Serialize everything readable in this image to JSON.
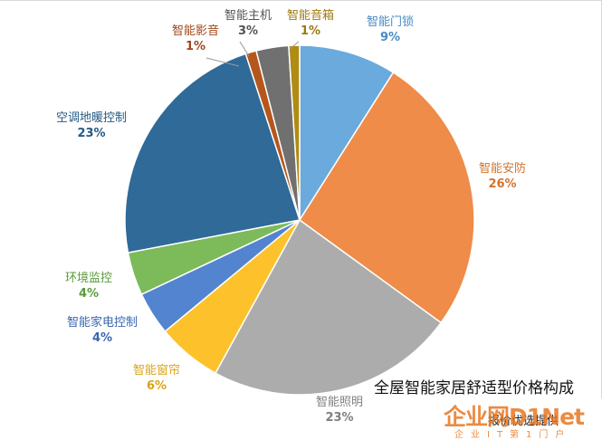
{
  "chart_data": {
    "type": "pie",
    "title": "全屋智能家居舒适型价格构成",
    "slices": [
      {
        "name": "智能门锁",
        "value": 9,
        "label": "9%",
        "color": "#6aaadc"
      },
      {
        "name": "智能安防",
        "value": 26,
        "label": "26%",
        "color": "#ef8c49"
      },
      {
        "name": "智能照明",
        "value": 23,
        "label": "23%",
        "color": "#acacac"
      },
      {
        "name": "智能窗帘",
        "value": 6,
        "label": "6%",
        "color": "#fdc22b"
      },
      {
        "name": "智能家电控制",
        "value": 4,
        "label": "4%",
        "color": "#5384cf"
      },
      {
        "name": "环境监控",
        "value": 4,
        "label": "4%",
        "color": "#7cba5a"
      },
      {
        "name": "空调地暖控制",
        "value": 23,
        "label": "23%",
        "color": "#2f6a98"
      },
      {
        "name": "智能影音",
        "value": 1,
        "label": "1%",
        "color": "#b5561c"
      },
      {
        "name": "智能主机",
        "value": 3,
        "label": "3%",
        "color": "#707070"
      },
      {
        "name": "智能音箱",
        "value": 1,
        "label": "1%",
        "color": "#b08c13"
      }
    ],
    "label_colors": [
      "#4a8ac4",
      "#d2742f",
      "#7f7f7f",
      "#d8a41a",
      "#3a66b0",
      "#5a9a3a",
      "#245a84",
      "#a0481a",
      "#555555",
      "#9c7a0f"
    ]
  },
  "footer": {
    "source": "报价优选提供",
    "watermark": "企业网D1Net",
    "watermark_sub": "企业IT第1门户"
  }
}
